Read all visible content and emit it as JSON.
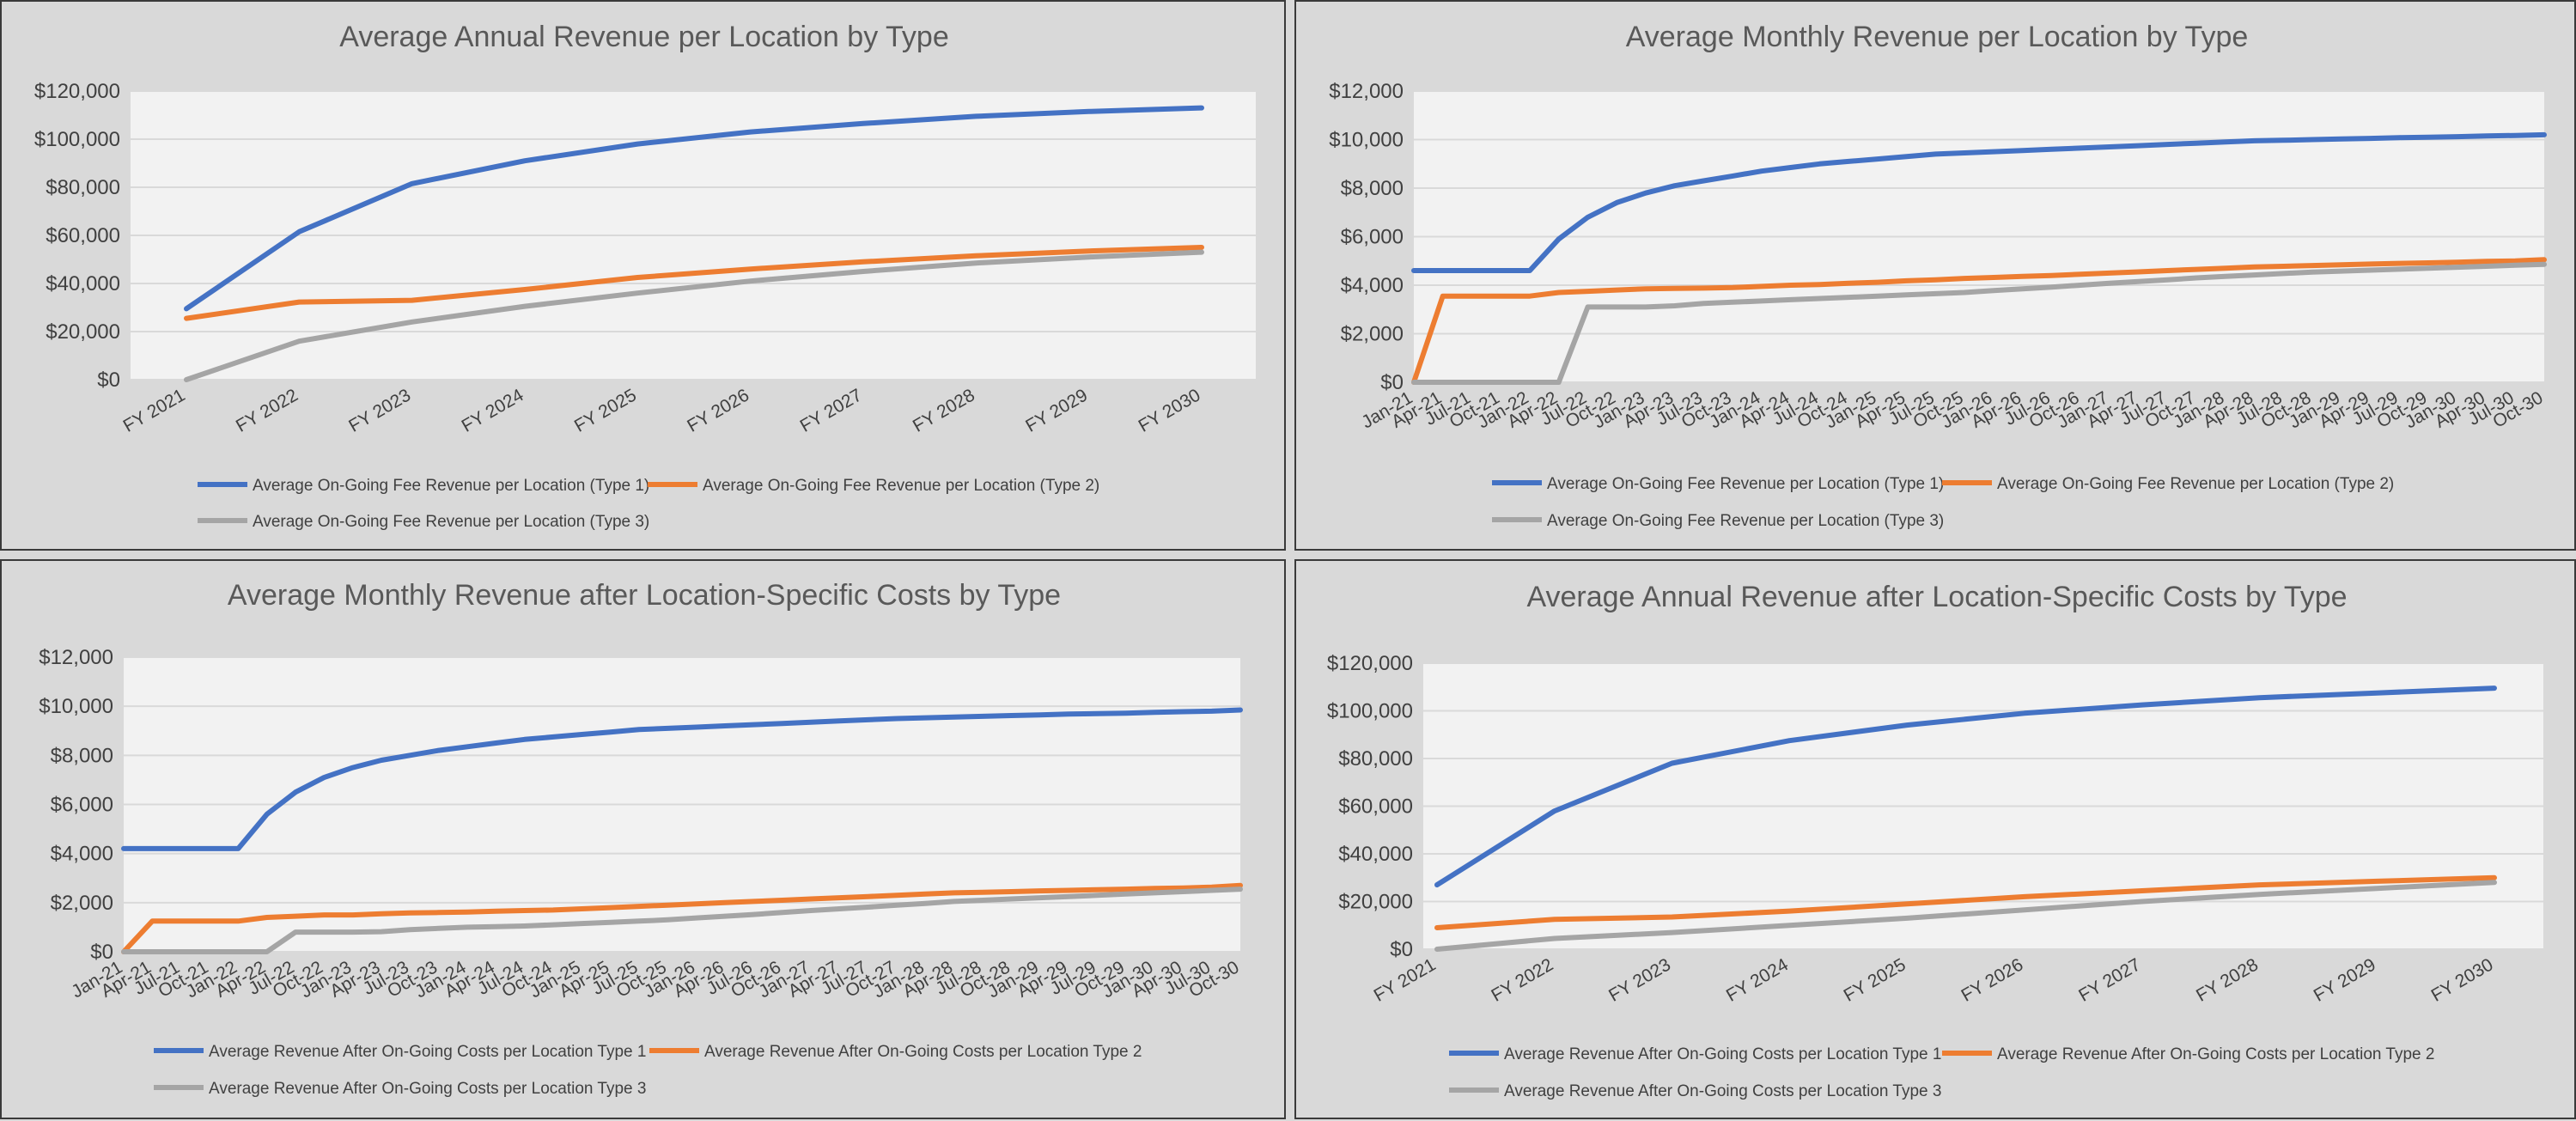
{
  "chart_data": [
    {
      "type": "line",
      "title": "Average Annual Revenue per Location by Type",
      "categories": [
        "FY 2021",
        "FY 2022",
        "FY 2023",
        "FY 2024",
        "FY 2025",
        "FY 2026",
        "FY 2027",
        "FY 2028",
        "FY 2029",
        "FY 2030"
      ],
      "yticks": [
        "$0",
        "$20,000",
        "$40,000",
        "$60,000",
        "$80,000",
        "$100,000",
        "$120,000"
      ],
      "ylim": [
        0,
        120000
      ],
      "grid": true,
      "legend_position": "bottom",
      "series": [
        {
          "name": "Average On-Going Fee Revenue per Location (Type 1)",
          "color": "#4472c4",
          "values": [
            29500,
            61500,
            81500,
            91000,
            98000,
            103000,
            106500,
            109500,
            111500,
            113000
          ]
        },
        {
          "name": "Average On-Going Fee Revenue per Location (Type 2)",
          "color": "#ed7d31",
          "values": [
            25500,
            32300,
            33000,
            37500,
            42500,
            46000,
            49000,
            51500,
            53500,
            55000
          ]
        },
        {
          "name": "Average On-Going Fee Revenue per Location (Type 3)",
          "color": "#a5a5a5",
          "values": [
            0,
            16000,
            24000,
            30500,
            36000,
            41000,
            45000,
            48500,
            51000,
            53000
          ]
        }
      ]
    },
    {
      "type": "line",
      "title": "Average Monthly Revenue per Location by Type",
      "categories": [
        "Jan-21",
        "Apr-21",
        "Jul-21",
        "Oct-21",
        "Jan-22",
        "Apr-22",
        "Jul-22",
        "Oct-22",
        "Jan-23",
        "Apr-23",
        "Jul-23",
        "Oct-23",
        "Jan-24",
        "Apr-24",
        "Jul-24",
        "Oct-24",
        "Jan-25",
        "Apr-25",
        "Jul-25",
        "Oct-25",
        "Jan-26",
        "Apr-26",
        "Jul-26",
        "Oct-26",
        "Jan-27",
        "Apr-27",
        "Jul-27",
        "Oct-27",
        "Jan-28",
        "Apr-28",
        "Jul-28",
        "Oct-28",
        "Jan-29",
        "Apr-29",
        "Jul-29",
        "Oct-29",
        "Jan-30",
        "Apr-30",
        "Jul-30",
        "Oct-30"
      ],
      "yticks": [
        "$0",
        "$2,000",
        "$4,000",
        "$6,000",
        "$8,000",
        "$10,000",
        "$12,000"
      ],
      "ylim": [
        0,
        12000
      ],
      "grid": true,
      "legend_position": "bottom",
      "series": [
        {
          "name": "Average On-Going Fee Revenue per Location (Type 1)",
          "color": "#4472c4",
          "values": [
            4600,
            4600,
            4600,
            4600,
            4600,
            5900,
            6800,
            7400,
            7800,
            8100,
            8300,
            8500,
            8700,
            8850,
            9000,
            9100,
            9200,
            9300,
            9400,
            9450,
            9500,
            9550,
            9600,
            9650,
            9700,
            9750,
            9800,
            9850,
            9900,
            9950,
            9970,
            10000,
            10030,
            10050,
            10080,
            10100,
            10120,
            10150,
            10170,
            10200
          ]
        },
        {
          "name": "Average On-Going Fee Revenue per Location (Type 2)",
          "color": "#ed7d31",
          "values": [
            0,
            3550,
            3550,
            3550,
            3550,
            3700,
            3750,
            3800,
            3850,
            3870,
            3880,
            3900,
            3950,
            4000,
            4030,
            4080,
            4120,
            4180,
            4220,
            4280,
            4320,
            4360,
            4400,
            4450,
            4500,
            4550,
            4600,
            4650,
            4700,
            4750,
            4780,
            4810,
            4840,
            4870,
            4900,
            4920,
            4950,
            4980,
            5000,
            5050
          ]
        },
        {
          "name": "Average On-Going Fee Revenue per Location (Type 3)",
          "color": "#a5a5a5",
          "values": [
            0,
            0,
            0,
            0,
            0,
            0,
            3100,
            3100,
            3100,
            3150,
            3250,
            3300,
            3350,
            3400,
            3450,
            3500,
            3550,
            3600,
            3650,
            3700,
            3780,
            3850,
            3920,
            4000,
            4080,
            4150,
            4220,
            4300,
            4360,
            4420,
            4480,
            4540,
            4580,
            4620,
            4660,
            4700,
            4740,
            4780,
            4820,
            4860
          ]
        }
      ]
    },
    {
      "type": "line",
      "title": "Average Monthly Revenue after Location-Specific Costs by Type",
      "categories": [
        "Jan-21",
        "Apr-21",
        "Jul-21",
        "Oct-21",
        "Jan-22",
        "Apr-22",
        "Jul-22",
        "Oct-22",
        "Jan-23",
        "Apr-23",
        "Jul-23",
        "Oct-23",
        "Jan-24",
        "Apr-24",
        "Jul-24",
        "Oct-24",
        "Jan-25",
        "Apr-25",
        "Jul-25",
        "Oct-25",
        "Jan-26",
        "Apr-26",
        "Jul-26",
        "Oct-26",
        "Jan-27",
        "Apr-27",
        "Jul-27",
        "Oct-27",
        "Jan-28",
        "Apr-28",
        "Jul-28",
        "Oct-28",
        "Jan-29",
        "Apr-29",
        "Jul-29",
        "Oct-29",
        "Jan-30",
        "Apr-30",
        "Jul-30",
        "Oct-30"
      ],
      "yticks": [
        "$0",
        "$2,000",
        "$4,000",
        "$6,000",
        "$8,000",
        "$10,000",
        "$12,000"
      ],
      "ylim": [
        0,
        12000
      ],
      "grid": true,
      "legend_position": "bottom",
      "series": [
        {
          "name": "Average Revenue After On-Going Costs per Location Type 1",
          "color": "#4472c4",
          "values": [
            4200,
            4200,
            4200,
            4200,
            4200,
            5600,
            6500,
            7100,
            7500,
            7800,
            8000,
            8200,
            8350,
            8500,
            8650,
            8750,
            8850,
            8950,
            9050,
            9100,
            9150,
            9200,
            9250,
            9300,
            9350,
            9400,
            9450,
            9500,
            9530,
            9560,
            9590,
            9620,
            9650,
            9680,
            9700,
            9720,
            9750,
            9780,
            9800,
            9850
          ]
        },
        {
          "name": "Average Revenue After On-Going Costs per Location Type 2",
          "color": "#ed7d31",
          "values": [
            0,
            1250,
            1250,
            1250,
            1250,
            1400,
            1450,
            1500,
            1500,
            1550,
            1580,
            1600,
            1620,
            1650,
            1680,
            1700,
            1750,
            1800,
            1850,
            1900,
            1950,
            2000,
            2050,
            2100,
            2150,
            2200,
            2250,
            2300,
            2350,
            2400,
            2420,
            2450,
            2480,
            2500,
            2530,
            2550,
            2580,
            2600,
            2630,
            2700
          ]
        },
        {
          "name": "Average Revenue After On-Going Costs per Location Type 3",
          "color": "#a5a5a5",
          "values": [
            0,
            0,
            0,
            0,
            0,
            0,
            800,
            800,
            800,
            820,
            900,
            950,
            1000,
            1020,
            1050,
            1100,
            1150,
            1200,
            1250,
            1300,
            1380,
            1450,
            1520,
            1600,
            1680,
            1750,
            1820,
            1900,
            1970,
            2050,
            2100,
            2150,
            2200,
            2250,
            2300,
            2350,
            2400,
            2450,
            2500,
            2550
          ]
        }
      ]
    },
    {
      "type": "line",
      "title": "Average Annual Revenue after Location-Specific Costs by Type",
      "categories": [
        "FY 2021",
        "FY 2022",
        "FY 2023",
        "FY 2024",
        "FY 2025",
        "FY 2026",
        "FY 2027",
        "FY 2028",
        "FY 2029",
        "FY 2030"
      ],
      "yticks": [
        "$0",
        "$20,000",
        "$40,000",
        "$60,000",
        "$80,000",
        "$100,000",
        "$120,000"
      ],
      "ylim": [
        0,
        120000
      ],
      "grid": true,
      "legend_position": "bottom",
      "series": [
        {
          "name": "Average Revenue After On-Going Costs per Location Type 1",
          "color": "#4472c4",
          "values": [
            27000,
            58000,
            78000,
            87500,
            94000,
            99000,
            102500,
            105500,
            107500,
            109500
          ]
        },
        {
          "name": "Average Revenue After On-Going Costs per Location Type 2",
          "color": "#ed7d31",
          "values": [
            9000,
            12500,
            13500,
            16000,
            19000,
            22000,
            24500,
            27000,
            28500,
            30000
          ]
        },
        {
          "name": "Average Revenue After On-Going Costs per Location Type 3",
          "color": "#a5a5a5",
          "values": [
            0,
            4500,
            7000,
            10000,
            13000,
            16500,
            20000,
            23000,
            25500,
            28000
          ]
        }
      ]
    }
  ]
}
